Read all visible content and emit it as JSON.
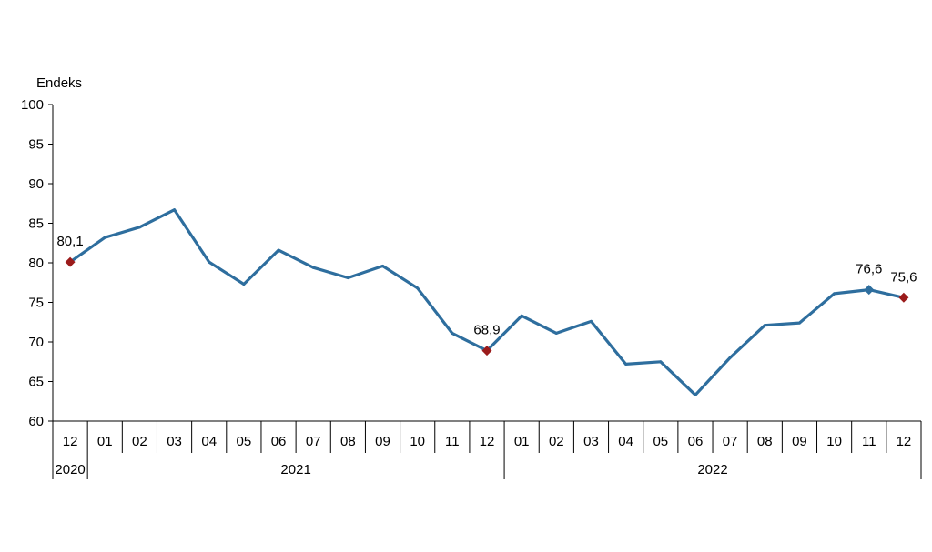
{
  "chart_data": {
    "type": "line",
    "title": "",
    "ylabel": "Endeks",
    "xlabel": "",
    "ylim": [
      60,
      100
    ],
    "yticks": [
      "60",
      "65",
      "70",
      "75",
      "80",
      "85",
      "90",
      "95",
      "100"
    ],
    "grid": false,
    "legend": "none",
    "line_color": "#2e6e9e",
    "marker_color": "#9b1b1b",
    "categories": [
      "12",
      "01",
      "02",
      "03",
      "04",
      "05",
      "06",
      "07",
      "08",
      "09",
      "10",
      "11",
      "12",
      "01",
      "02",
      "03",
      "04",
      "05",
      "06",
      "07",
      "08",
      "09",
      "10",
      "11",
      "12"
    ],
    "years": [
      {
        "label": "2020",
        "start": 0,
        "end": 0
      },
      {
        "label": "2021",
        "start": 1,
        "end": 12
      },
      {
        "label": "2022",
        "start": 13,
        "end": 24
      }
    ],
    "series": [
      {
        "values": [
          80.1,
          83.2,
          84.5,
          86.7,
          80.1,
          77.3,
          81.6,
          79.4,
          78.1,
          79.6,
          76.8,
          71.1,
          68.9,
          73.3,
          71.1,
          72.6,
          67.2,
          67.5,
          63.3,
          68.0,
          72.1,
          72.4,
          76.1,
          76.6,
          75.6
        ]
      }
    ],
    "annotations": [
      {
        "index": 0,
        "text": "80,1",
        "marker": "red-diamond"
      },
      {
        "index": 12,
        "text": "68,9",
        "marker": "red-diamond"
      },
      {
        "index": 23,
        "text": "76,6",
        "marker": "blue-diamond"
      },
      {
        "index": 24,
        "text": "75,6",
        "marker": "red-diamond"
      }
    ]
  }
}
